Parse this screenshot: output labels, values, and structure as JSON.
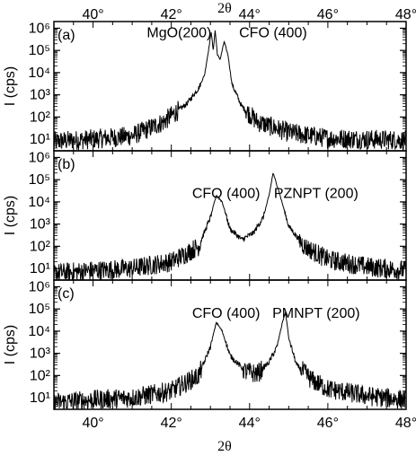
{
  "chart_data": [
    {
      "type": "line",
      "panel_label": "(a)",
      "xlabel_top": "2θ",
      "ylabel": "I (cps)",
      "xlim": [
        39,
        48
      ],
      "ylim": [
        3,
        2000000
      ],
      "yscale": "log",
      "x_ticks": [
        40,
        42,
        44,
        46,
        48
      ],
      "x_tick_labels": [
        "40°",
        "42°",
        "44°",
        "46°",
        "48°"
      ],
      "y_ticks": [
        10,
        100,
        1000,
        10000,
        100000,
        1000000
      ],
      "y_tick_labels": [
        "10¹",
        "10²",
        "10³",
        "10⁴",
        "10⁵",
        "10⁶"
      ],
      "annotations": [
        {
          "text": "MgO(200)",
          "x": 42.2,
          "y": 400000
        },
        {
          "text": "CFO (400)",
          "x": 44.6,
          "y": 400000
        }
      ],
      "series": [
        {
          "points": [
            [
              39,
              8
            ],
            [
              40,
              10
            ],
            [
              41,
              14
            ],
            [
              41.8,
              60
            ],
            [
              42.4,
              400
            ],
            [
              42.7,
              2000
            ],
            [
              42.85,
              8000
            ],
            [
              42.95,
              100000
            ],
            [
              43.02,
              700000
            ],
            [
              43.07,
              100000
            ],
            [
              43.12,
              800000
            ],
            [
              43.18,
              60000
            ],
            [
              43.25,
              40000
            ],
            [
              43.35,
              250000
            ],
            [
              43.45,
              60000
            ],
            [
              43.55,
              3000
            ],
            [
              43.8,
              300
            ],
            [
              44.2,
              60
            ],
            [
              45,
              20
            ],
            [
              46,
              11
            ],
            [
              48,
              9
            ]
          ]
        }
      ]
    },
    {
      "type": "line",
      "panel_label": "(b)",
      "ylabel": "I (cps)",
      "xlim": [
        39,
        48
      ],
      "ylim": [
        3,
        2000000
      ],
      "yscale": "log",
      "y_ticks": [
        10,
        100,
        1000,
        10000,
        100000,
        1000000
      ],
      "y_tick_labels": [
        "10¹",
        "10²",
        "10³",
        "10⁴",
        "10⁵",
        "10⁶"
      ],
      "annotations": [
        {
          "text": "CFO (400)",
          "x": 43.4,
          "y": 15000
        },
        {
          "text": "PZNPT (200)",
          "x": 45.7,
          "y": 15000
        }
      ],
      "series": [
        {
          "points": [
            [
              39,
              6
            ],
            [
              40,
              8
            ],
            [
              41,
              10
            ],
            [
              42,
              20
            ],
            [
              42.7,
              100
            ],
            [
              43.0,
              2000
            ],
            [
              43.15,
              20000
            ],
            [
              43.3,
              10000
            ],
            [
              43.5,
              600
            ],
            [
              43.8,
              200
            ],
            [
              44.1,
              400
            ],
            [
              44.35,
              2000
            ],
            [
              44.5,
              20000
            ],
            [
              44.6,
              200000
            ],
            [
              44.75,
              30000
            ],
            [
              45.0,
              800
            ],
            [
              45.4,
              100
            ],
            [
              46,
              25
            ],
            [
              47,
              12
            ],
            [
              48,
              8
            ]
          ]
        }
      ]
    },
    {
      "type": "line",
      "panel_label": "(c)",
      "xlabel": "2θ",
      "ylabel": "I (cps)",
      "xlim": [
        39,
        48
      ],
      "ylim": [
        3,
        2000000
      ],
      "yscale": "log",
      "x_ticks": [
        40,
        42,
        44,
        46,
        48
      ],
      "x_tick_labels": [
        "40°",
        "42°",
        "44°",
        "46°",
        "48°"
      ],
      "y_ticks": [
        10,
        100,
        1000,
        10000,
        100000,
        1000000
      ],
      "y_tick_labels": [
        "10¹",
        "10²",
        "10³",
        "10⁴",
        "10⁵",
        "10⁶"
      ],
      "annotations": [
        {
          "text": "CFO (400)",
          "x": 43.4,
          "y": 40000
        },
        {
          "text": "PMNPT (200)",
          "x": 45.7,
          "y": 40000
        }
      ],
      "series": [
        {
          "points": [
            [
              39,
              6
            ],
            [
              40,
              8
            ],
            [
              41,
              10
            ],
            [
              42,
              20
            ],
            [
              42.7,
              100
            ],
            [
              43.0,
              2000
            ],
            [
              43.15,
              25000
            ],
            [
              43.3,
              10000
            ],
            [
              43.5,
              800
            ],
            [
              43.9,
              150
            ],
            [
              44.2,
              120
            ],
            [
              44.5,
              400
            ],
            [
              44.7,
              2000
            ],
            [
              44.85,
              30000
            ],
            [
              44.92,
              70000
            ],
            [
              45.0,
              5000
            ],
            [
              45.2,
              300
            ],
            [
              45.6,
              60
            ],
            [
              46,
              25
            ],
            [
              47,
              12
            ],
            [
              48,
              8
            ]
          ]
        }
      ]
    }
  ]
}
